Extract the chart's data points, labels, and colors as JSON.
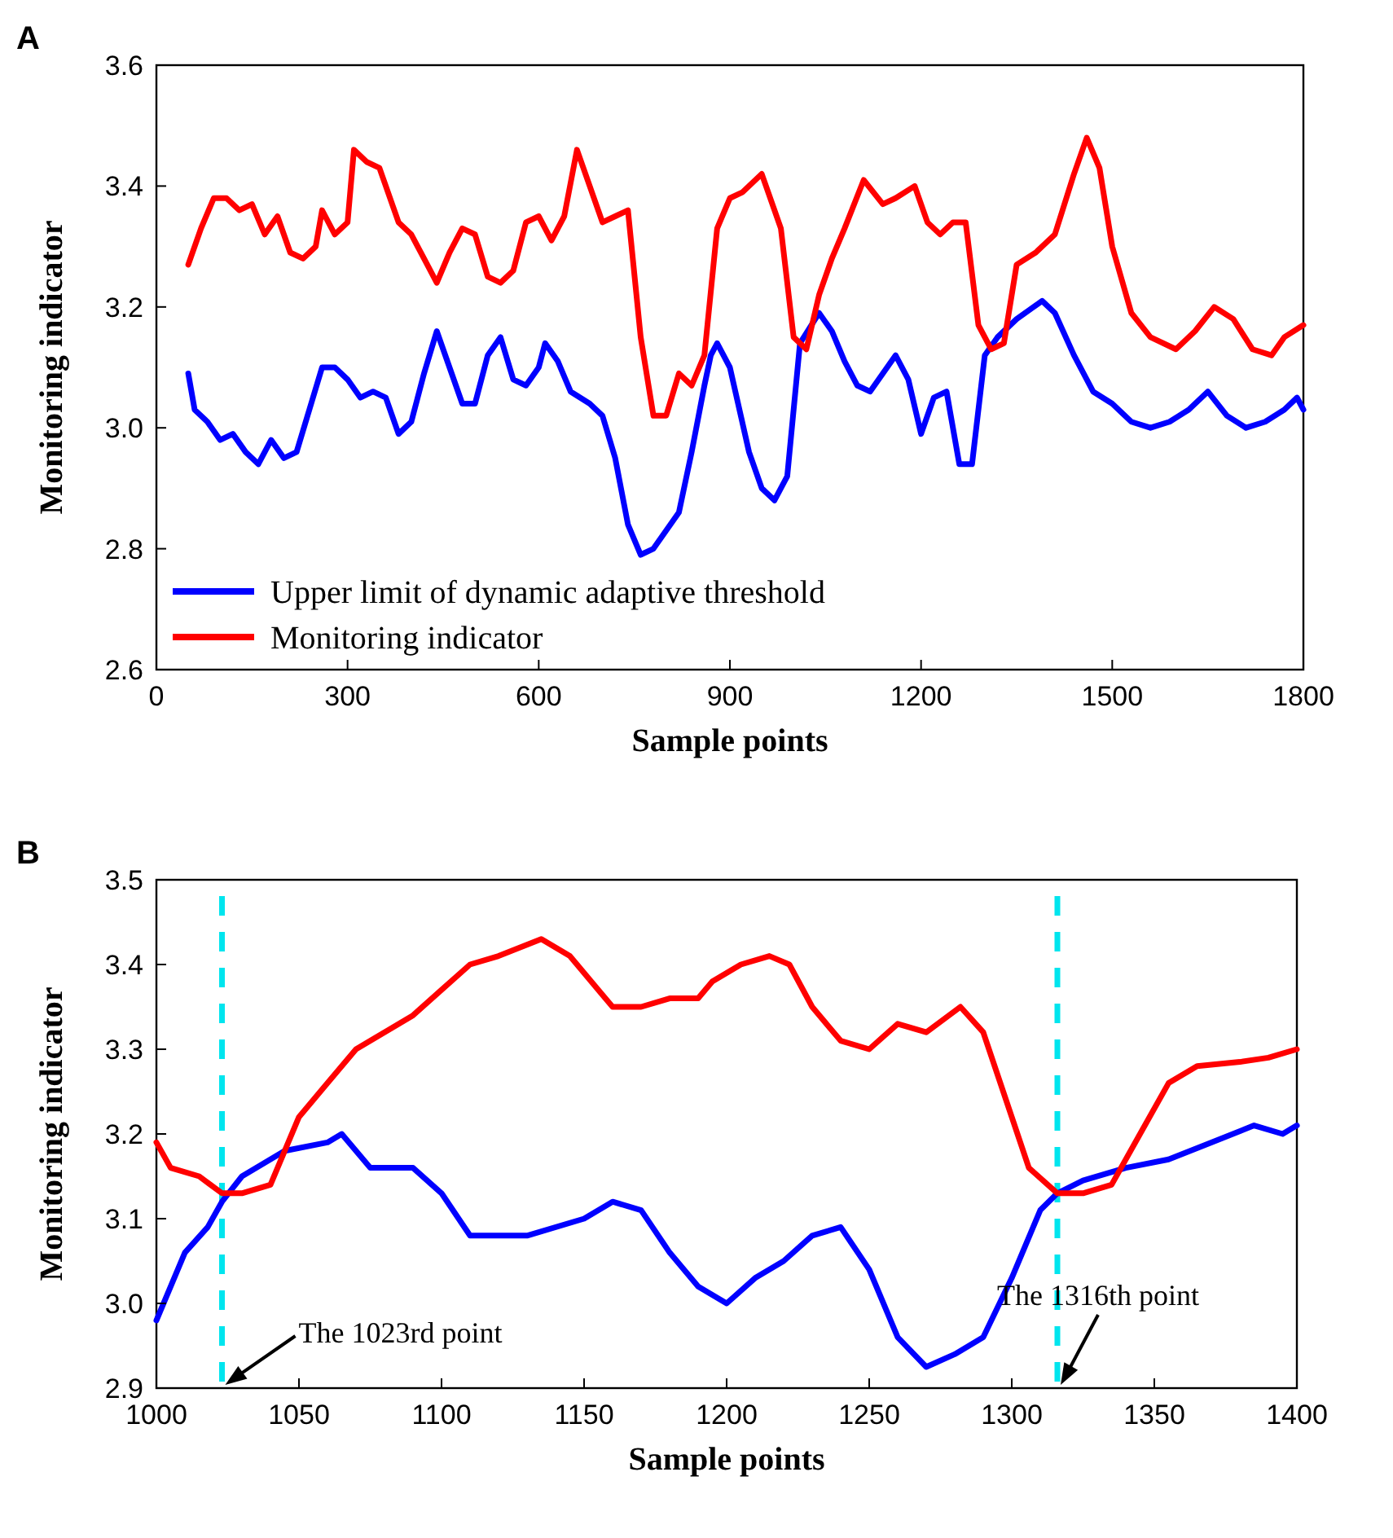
{
  "chart_data": [
    {
      "type": "line",
      "title": "A",
      "xlabel": "Sample points",
      "ylabel": "Monitoring indicator",
      "xlim": [
        0,
        1800
      ],
      "xticks": [
        0,
        300,
        600,
        900,
        1200,
        1500,
        1800
      ],
      "ylim": [
        2.6,
        3.6
      ],
      "yticks": [
        2.6,
        2.8,
        {
          "value": 3,
          "label": "3.0"
        },
        3.2,
        3.4,
        3.6
      ],
      "legend": "bottom left",
      "grid": false,
      "series": [
        {
          "name": "Upper limit of dynamic adaptive threshold",
          "color": "#0000ff",
          "x": [
            50,
            60,
            80,
            100,
            120,
            140,
            160,
            180,
            200,
            220,
            240,
            260,
            280,
            300,
            320,
            340,
            360,
            380,
            400,
            420,
            440,
            460,
            480,
            500,
            520,
            540,
            560,
            580,
            600,
            610,
            630,
            650,
            680,
            700,
            720,
            740,
            760,
            780,
            800,
            820,
            840,
            860,
            870,
            880,
            900,
            930,
            950,
            970,
            990,
            1010,
            1040,
            1060,
            1080,
            1100,
            1120,
            1140,
            1160,
            1180,
            1200,
            1220,
            1240,
            1260,
            1280,
            1300,
            1320,
            1350,
            1390,
            1410,
            1440,
            1470,
            1500,
            1530,
            1560,
            1590,
            1620,
            1650,
            1680,
            1710,
            1740,
            1770,
            1790,
            1800
          ],
          "values": [
            3.09,
            3.03,
            3.01,
            2.98,
            2.99,
            2.96,
            2.94,
            2.98,
            2.95,
            2.96,
            3.03,
            3.1,
            3.1,
            3.08,
            3.05,
            3.06,
            3.05,
            2.99,
            3.01,
            3.09,
            3.16,
            3.1,
            3.04,
            3.04,
            3.12,
            3.15,
            3.08,
            3.07,
            3.1,
            3.14,
            3.11,
            3.06,
            3.04,
            3.02,
            2.95,
            2.84,
            2.79,
            2.8,
            2.83,
            2.86,
            2.96,
            3.07,
            3.12,
            3.14,
            3.1,
            2.96,
            2.9,
            2.88,
            2.92,
            3.14,
            3.19,
            3.16,
            3.11,
            3.07,
            3.06,
            3.09,
            3.12,
            3.08,
            2.99,
            3.05,
            3.06,
            2.94,
            2.94,
            3.12,
            3.15,
            3.18,
            3.21,
            3.19,
            3.12,
            3.06,
            3.04,
            3.01,
            3,
            3.01,
            3.03,
            3.06,
            3.02,
            3,
            3.01,
            3.03,
            3.05,
            3.03
          ]
        },
        {
          "name": "Monitoring indicator",
          "color": "#ff0000",
          "x": [
            50,
            70,
            90,
            110,
            130,
            150,
            170,
            190,
            210,
            230,
            250,
            260,
            280,
            300,
            310,
            330,
            350,
            380,
            400,
            420,
            440,
            460,
            480,
            500,
            520,
            540,
            560,
            580,
            600,
            620,
            640,
            660,
            680,
            700,
            720,
            740,
            760,
            780,
            800,
            820,
            840,
            860,
            880,
            900,
            920,
            950,
            980,
            1000,
            1020,
            1040,
            1060,
            1080,
            1110,
            1140,
            1160,
            1190,
            1210,
            1230,
            1250,
            1270,
            1290,
            1310,
            1330,
            1350,
            1380,
            1410,
            1440,
            1460,
            1480,
            1500,
            1530,
            1560,
            1600,
            1630,
            1660,
            1690,
            1720,
            1750,
            1770,
            1800
          ],
          "values": [
            3.27,
            3.33,
            3.38,
            3.38,
            3.36,
            3.37,
            3.32,
            3.35,
            3.29,
            3.28,
            3.3,
            3.36,
            3.32,
            3.34,
            3.46,
            3.44,
            3.43,
            3.34,
            3.32,
            3.28,
            3.24,
            3.29,
            3.33,
            3.32,
            3.25,
            3.24,
            3.26,
            3.34,
            3.35,
            3.31,
            3.35,
            3.46,
            3.4,
            3.34,
            3.35,
            3.36,
            3.15,
            3.02,
            3.02,
            3.09,
            3.07,
            3.12,
            3.33,
            3.38,
            3.39,
            3.42,
            3.33,
            3.15,
            3.13,
            3.22,
            3.28,
            3.33,
            3.41,
            3.37,
            3.38,
            3.4,
            3.34,
            3.32,
            3.34,
            3.34,
            3.17,
            3.13,
            3.14,
            3.27,
            3.29,
            3.32,
            3.42,
            3.48,
            3.43,
            3.3,
            3.19,
            3.15,
            3.13,
            3.16,
            3.2,
            3.18,
            3.13,
            3.12,
            3.15,
            3.17
          ]
        }
      ]
    },
    {
      "type": "line",
      "title": "B",
      "xlabel": "Sample points",
      "ylabel": "Monitoring indicator",
      "xlim": [
        1000,
        1400
      ],
      "xticks": [
        1000,
        1050,
        1100,
        1150,
        1200,
        1250,
        1300,
        1350,
        1400
      ],
      "ylim": [
        2.9,
        3.5
      ],
      "yticks": [
        2.9,
        {
          "value": 3,
          "label": "3.0"
        },
        3.1,
        3.2,
        3.3,
        3.4,
        3.5
      ],
      "legend": false,
      "grid": false,
      "series": [
        {
          "color": "#0000ff",
          "x": [
            1000,
            1010,
            1018,
            1023,
            1030,
            1045,
            1060,
            1065,
            1075,
            1090,
            1100,
            1110,
            1120,
            1130,
            1150,
            1160,
            1170,
            1180,
            1190,
            1200,
            1210,
            1220,
            1230,
            1240,
            1250,
            1260,
            1270,
            1280,
            1290,
            1300,
            1310,
            1316,
            1325,
            1340,
            1355,
            1370,
            1385,
            1395,
            1400
          ],
          "values": [
            2.98,
            3.06,
            3.09,
            3.12,
            3.15,
            3.18,
            3.19,
            3.2,
            3.16,
            3.16,
            3.13,
            3.08,
            3.08,
            3.08,
            3.1,
            3.12,
            3.11,
            3.06,
            3.02,
            3,
            3.03,
            3.05,
            3.08,
            3.09,
            3.04,
            2.96,
            2.925,
            2.94,
            2.96,
            3.03,
            3.11,
            3.13,
            3.145,
            3.16,
            3.17,
            3.19,
            3.21,
            3.2,
            3.21
          ]
        },
        {
          "color": "#ff0000",
          "x": [
            1000,
            1005,
            1015,
            1023,
            1030,
            1040,
            1050,
            1060,
            1070,
            1080,
            1090,
            1100,
            1110,
            1120,
            1135,
            1145,
            1155,
            1160,
            1170,
            1180,
            1190,
            1195,
            1205,
            1215,
            1222,
            1230,
            1240,
            1250,
            1260,
            1270,
            1282,
            1290,
            1300,
            1306,
            1316,
            1325,
            1335,
            1345,
            1355,
            1365,
            1380,
            1390,
            1400
          ],
          "values": [
            3.19,
            3.16,
            3.15,
            3.13,
            3.13,
            3.14,
            3.22,
            3.26,
            3.3,
            3.32,
            3.34,
            3.37,
            3.4,
            3.41,
            3.43,
            3.41,
            3.37,
            3.35,
            3.35,
            3.36,
            3.36,
            3.38,
            3.4,
            3.41,
            3.4,
            3.35,
            3.31,
            3.3,
            3.33,
            3.32,
            3.35,
            3.32,
            3.22,
            3.16,
            3.13,
            3.13,
            3.14,
            3.2,
            3.26,
            3.28,
            3.285,
            3.29,
            3.3
          ]
        }
      ],
      "ref_lines": [
        {
          "axis": "x",
          "value": 1023,
          "color": "#00e5ee",
          "line_style": "dashed"
        },
        {
          "axis": "x",
          "value": 1316,
          "color": "#00e5ee",
          "line_style": "dashed"
        }
      ],
      "annotations": [
        {
          "text": "The 1023rd point",
          "x": 1023,
          "y": 2.9
        },
        {
          "text": "The 1316th point",
          "x": 1316,
          "y": 2.9
        }
      ]
    }
  ]
}
